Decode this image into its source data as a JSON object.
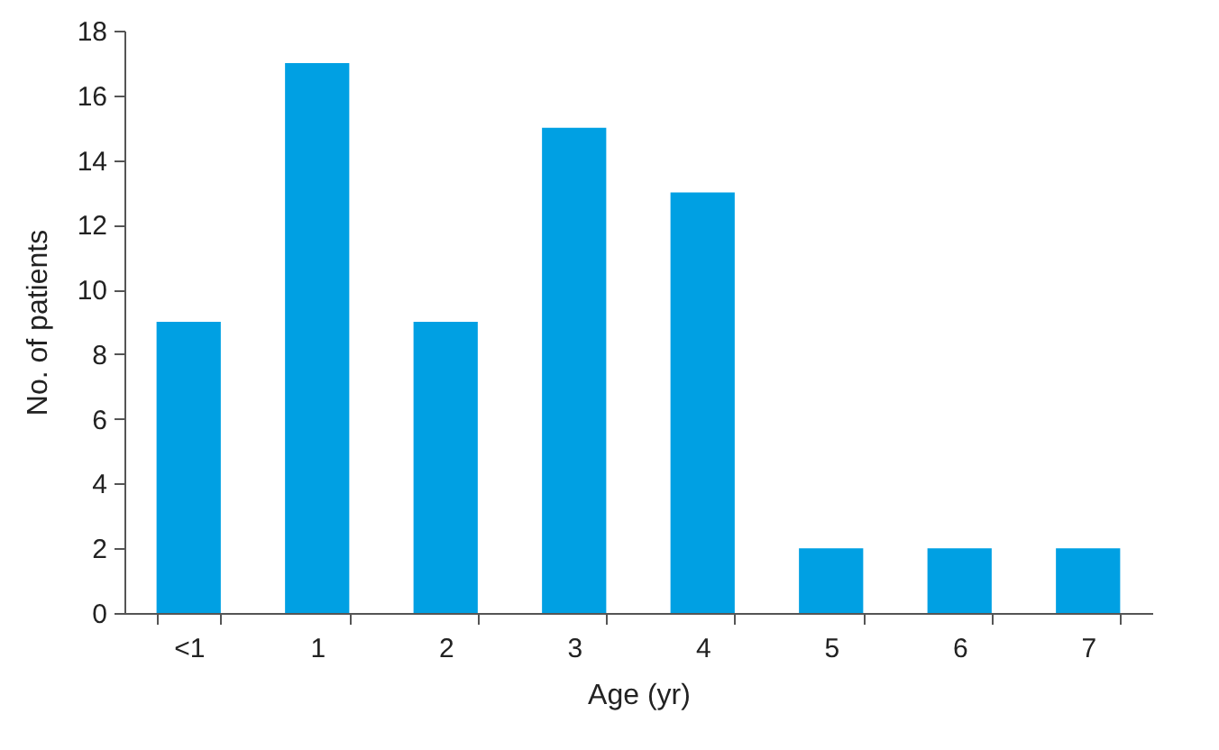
{
  "chart_data": {
    "type": "bar",
    "xlabel": "Age (yr)",
    "ylabel": "No. of patients",
    "categories": [
      "<1",
      "1",
      "2",
      "3",
      "4",
      "5",
      "6",
      "7"
    ],
    "values": [
      9,
      17,
      9,
      15,
      13,
      2,
      2,
      2
    ],
    "color": "#00a0e3",
    "ylim": [
      0,
      18
    ],
    "yticks": [
      0,
      2,
      4,
      6,
      8,
      10,
      12,
      14,
      16,
      18
    ],
    "grid": false
  }
}
